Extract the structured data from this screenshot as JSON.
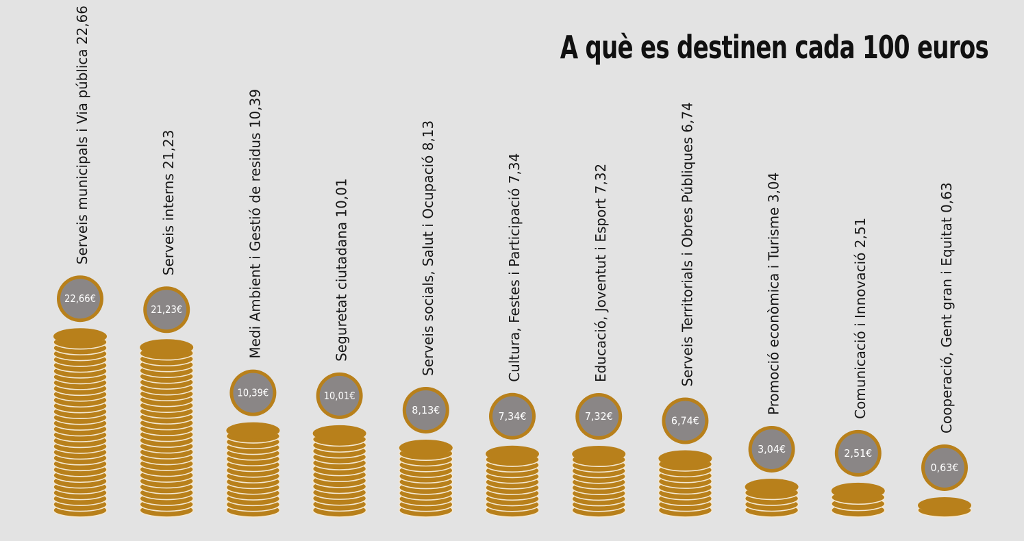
{
  "title": "A què es destinen cada 100 euros",
  "colors": {
    "background": "#e3e3e3",
    "coin": "#b8801b",
    "coin_edge": "#f4e8d2",
    "badge_fill": "#8a8686",
    "badge_ring": "#b8801b",
    "badge_text": "#ffffff"
  },
  "chart_data": {
    "type": "bar",
    "title": "A què es destinen cada 100 euros",
    "categories": [
      "Serveis municipals i Via pública",
      "Serveis interns",
      "Medi Ambient i Gestió de residus",
      "Seguretat ciutadana",
      "Serveis socials, Salut i Ocupació",
      "Cultura, Festes i Participació",
      "Educació, Joventut i Esport",
      "Serveis Territorials i Obres Públiques",
      "Promoció econòmica i Turisme",
      "Comunicació i Innovació",
      "Cooperació, Gent gran i Equitat"
    ],
    "values": [
      22.66,
      21.23,
      10.39,
      10.01,
      8.13,
      7.34,
      7.32,
      6.74,
      3.04,
      2.51,
      0.63
    ],
    "labels": [
      "Serveis municipals i Via pública  22,66",
      "Serveis interns  21,23",
      "Medi Ambient i Gestió de residus  10,39",
      "Seguretat ciutadana  10,01",
      "Serveis socials, Salut i Ocupació 8,13",
      "Cultura, Festes i Participació  7,34",
      "Educació, Joventut i Esport  7,32",
      "Serveis Territorials i Obres Públiques 6,74",
      "Promoció econòmica i Turisme  3,04",
      "Comunicació i Innovació  2,51",
      "Cooperació, Gent gran i Equitat  0,63"
    ],
    "badges": [
      "22,66€",
      "21,23€",
      "10,39€",
      "10,01€",
      "8,13€",
      "7,34€",
      "7,32€",
      "6,74€",
      "3,04€",
      "2,51€",
      "0,63€"
    ],
    "xlabel": "",
    "ylabel": "",
    "grid": false,
    "legend": "none"
  }
}
